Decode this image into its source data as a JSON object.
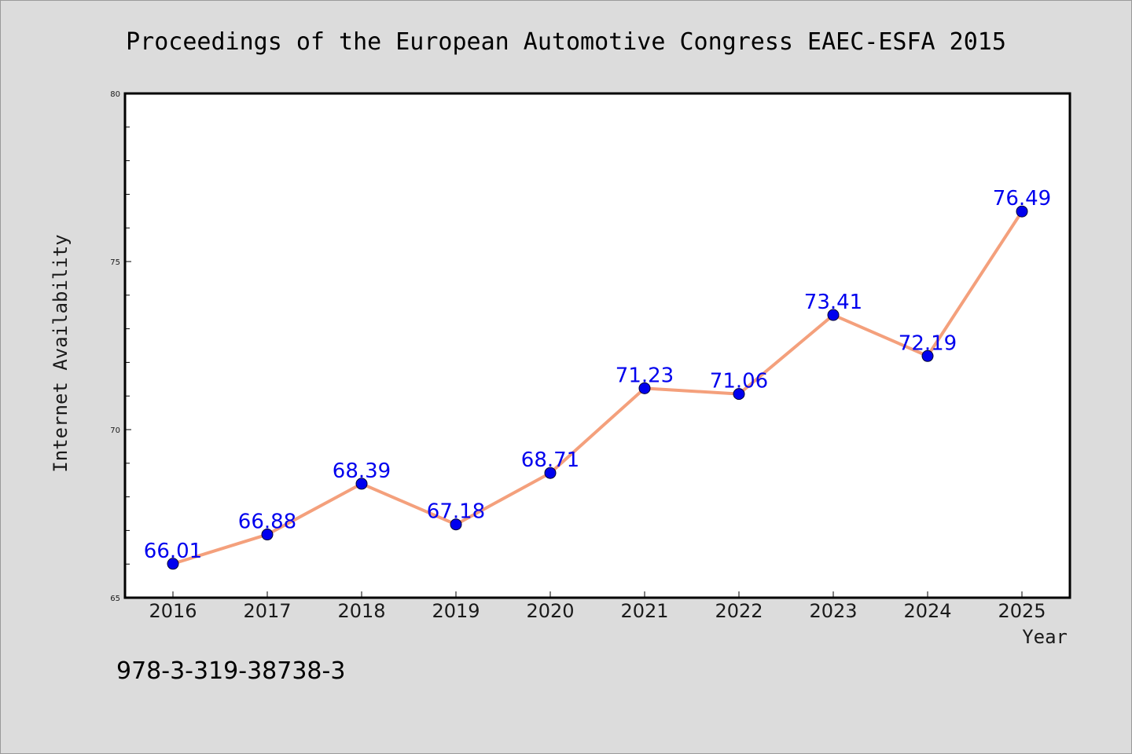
{
  "chart_data": {
    "type": "line",
    "title": "Proceedings of the European Automotive Congress EAEC-ESFA 2015",
    "xlabel": "Year",
    "ylabel": "Internet Availability",
    "categories": [
      "2016",
      "2017",
      "2018",
      "2019",
      "2020",
      "2021",
      "2022",
      "2023",
      "2024",
      "2025"
    ],
    "series": [
      {
        "values": [
          66.01,
          66.88,
          68.39,
          67.18,
          68.71,
          71.23,
          71.06,
          73.41,
          72.19,
          76.49
        ],
        "labels": [
          "66.01",
          "66.88",
          "68.39",
          "67.18",
          "68.71",
          "71.23",
          "71.06",
          "73.41",
          "72.19",
          "76.49"
        ]
      }
    ],
    "ylim": [
      65,
      80
    ],
    "yticks": [
      "65",
      "70",
      "75",
      "80"
    ],
    "grid": false,
    "legend": "none",
    "colors": {
      "line": "#f4a07c",
      "marker": "#0000ee",
      "label": "#0000ee"
    }
  },
  "footer": {
    "isbn": "978-3-319-38738-3"
  }
}
